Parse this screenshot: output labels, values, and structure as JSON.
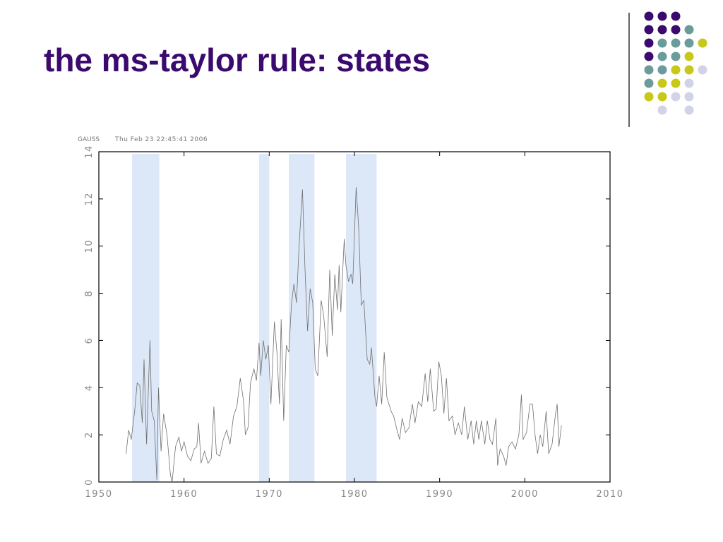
{
  "chart_data": {
    "type": "line",
    "title": "the ms-taylor rule: states",
    "program": "GAUSS",
    "timestamp": "Thu Feb 23 22:45:41 2006",
    "x": [
      1953.2,
      1953.5,
      1953.8,
      1954.2,
      1954.5,
      1954.8,
      1955.1,
      1955.3,
      1955.6,
      1956.0,
      1956.2,
      1956.5,
      1956.8,
      1957.0,
      1957.3,
      1957.6,
      1958.0,
      1958.4,
      1958.6,
      1959.0,
      1959.4,
      1959.7,
      1960.0,
      1960.4,
      1960.8,
      1961.2,
      1961.5,
      1961.7,
      1962.0,
      1962.4,
      1962.8,
      1963.2,
      1963.5,
      1963.8,
      1964.2,
      1964.6,
      1965.0,
      1965.4,
      1965.8,
      1966.2,
      1966.6,
      1967.0,
      1967.2,
      1967.5,
      1967.8,
      1968.2,
      1968.5,
      1968.8,
      1969.0,
      1969.3,
      1969.6,
      1969.9,
      1970.2,
      1970.6,
      1970.9,
      1971.2,
      1971.4,
      1971.7,
      1972.0,
      1972.3,
      1972.6,
      1972.9,
      1973.2,
      1973.5,
      1973.9,
      1974.2,
      1974.5,
      1974.8,
      1975.1,
      1975.4,
      1975.7,
      1976.1,
      1976.4,
      1976.8,
      1977.1,
      1977.4,
      1977.7,
      1978.0,
      1978.2,
      1978.4,
      1978.8,
      1979.0,
      1979.3,
      1979.6,
      1979.8,
      1980.2,
      1980.5,
      1980.8,
      1981.1,
      1981.5,
      1981.8,
      1982.0,
      1982.4,
      1982.6,
      1982.9,
      1983.2,
      1983.5,
      1983.8,
      1984.3,
      1984.6,
      1985.0,
      1985.3,
      1985.6,
      1986.0,
      1986.4,
      1986.8,
      1987.1,
      1987.5,
      1987.9,
      1988.3,
      1988.6,
      1988.9,
      1989.3,
      1989.6,
      1989.9,
      1990.2,
      1990.5,
      1990.8,
      1991.1,
      1991.5,
      1991.8,
      1992.2,
      1992.6,
      1992.9,
      1993.3,
      1993.7,
      1994.0,
      1994.3,
      1994.6,
      1994.9,
      1995.3,
      1995.6,
      1995.9,
      1996.2,
      1996.6,
      1996.8,
      1997.1,
      1997.5,
      1997.8,
      1998.1,
      1998.5,
      1998.9,
      1999.3,
      1999.6,
      1999.8,
      2000.2,
      2000.6,
      2000.9,
      2001.2,
      2001.5,
      2001.8,
      2002.1,
      2002.5,
      2002.8,
      2003.2,
      2003.6,
      2003.8,
      2004.0,
      2004.3
    ],
    "values": [
      1.2,
      2.2,
      1.8,
      3.0,
      4.2,
      4.1,
      2.5,
      5.2,
      1.6,
      6.0,
      3.0,
      2.6,
      0.1,
      4.0,
      1.3,
      2.9,
      2.0,
      0.3,
      0.0,
      1.5,
      1.9,
      1.3,
      1.7,
      1.1,
      0.9,
      1.4,
      1.5,
      2.5,
      0.8,
      1.3,
      0.8,
      1.0,
      3.2,
      1.2,
      1.1,
      1.8,
      2.2,
      1.6,
      2.8,
      3.2,
      4.4,
      3.4,
      2.0,
      2.3,
      4.2,
      4.8,
      4.3,
      5.9,
      4.5,
      6.0,
      5.2,
      5.8,
      3.3,
      6.8,
      5.5,
      3.3,
      6.9,
      2.6,
      5.8,
      5.5,
      7.5,
      8.4,
      7.6,
      10.0,
      12.4,
      9.0,
      6.4,
      8.2,
      7.6,
      4.8,
      4.5,
      7.7,
      7.0,
      5.3,
      9.0,
      6.2,
      8.8,
      7.3,
      9.2,
      7.2,
      10.3,
      9.2,
      8.5,
      8.8,
      8.4,
      12.5,
      10.8,
      7.5,
      7.7,
      5.2,
      5.0,
      5.7,
      3.6,
      3.2,
      4.5,
      3.3,
      5.5,
      3.6,
      3.0,
      2.8,
      2.2,
      1.8,
      2.7,
      2.1,
      2.3,
      3.3,
      2.5,
      3.4,
      3.2,
      4.6,
      3.4,
      4.8,
      3.0,
      3.1,
      5.1,
      4.5,
      2.9,
      4.4,
      2.6,
      2.8,
      2.0,
      2.5,
      2.0,
      3.2,
      1.8,
      2.6,
      1.6,
      2.6,
      1.8,
      2.6,
      1.6,
      2.6,
      1.8,
      1.6,
      2.7,
      0.7,
      1.4,
      1.1,
      0.7,
      1.5,
      1.7,
      1.4,
      2.0,
      3.7,
      1.8,
      2.1,
      3.3,
      3.3,
      2.0,
      1.2,
      2.0,
      1.5,
      3.0,
      1.2,
      1.6,
      2.9,
      3.3,
      1.5,
      2.4
    ],
    "color": "#707070",
    "shaded_regions": [
      [
        1953.9,
        1957.1
      ],
      [
        1968.8,
        1970.0
      ],
      [
        1972.3,
        1975.3
      ],
      [
        1979.0,
        1982.6
      ]
    ],
    "shade_color": "#dce7f7",
    "xlim": [
      1950,
      2010
    ],
    "xticks": [
      1950,
      1960,
      1970,
      1980,
      1990,
      2000,
      2010
    ],
    "ylim": [
      0,
      14
    ],
    "yticks": [
      0,
      2,
      4,
      6,
      8,
      10,
      12,
      14
    ]
  }
}
